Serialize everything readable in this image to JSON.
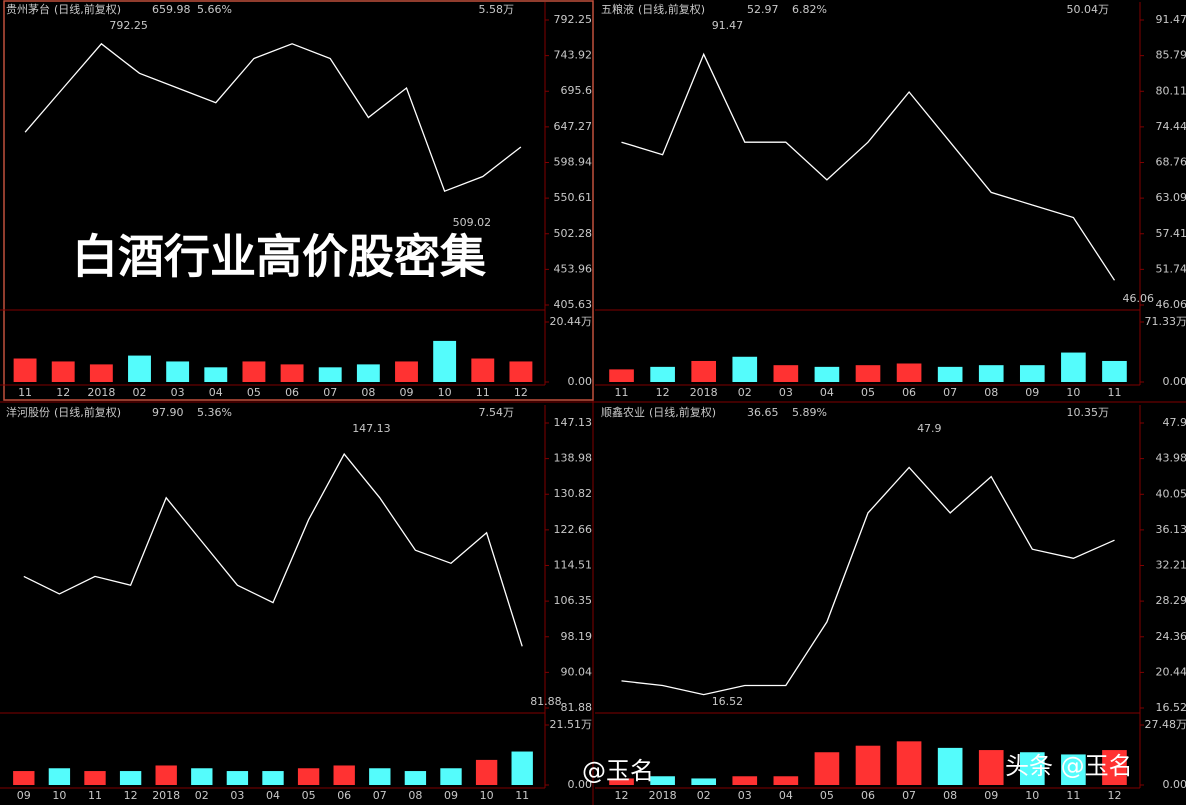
{
  "chart_data": [
    {
      "type": "line",
      "title": "贵州茅台",
      "subtitle": "(日线,前复权)",
      "price": "659.98",
      "change": "5.66%",
      "volume_label": "5.58万",
      "color": "#ffffff",
      "categories": [
        "11",
        "12",
        "2018",
        "02",
        "03",
        "04",
        "05",
        "06",
        "07",
        "08",
        "09",
        "10",
        "11",
        "12"
      ],
      "values": [
        640,
        700,
        760,
        720,
        700,
        680,
        740,
        760,
        740,
        660,
        700,
        560,
        580,
        620
      ],
      "ylim": [
        405.63,
        792.25
      ],
      "yticks": [
        405.63,
        453.96,
        502.28,
        550.61,
        598.94,
        647.27,
        695.6,
        743.92,
        792.25
      ],
      "high": 792.25,
      "low": 509.02,
      "grid": false,
      "volume": {
        "values": [
          8,
          7,
          6,
          9,
          7,
          5,
          7,
          6,
          5,
          6,
          7,
          14,
          8,
          7
        ],
        "ylim": [
          0,
          20.44
        ],
        "yticks": [
          {
            "value": 0,
            "label": "0.00"
          },
          {
            "value": 20.44,
            "label": "20.44万"
          }
        ]
      }
    },
    {
      "type": "line",
      "title": "五粮液",
      "subtitle": "(日线,前复权)",
      "price": "52.97",
      "change": "6.82%",
      "volume_label": "50.04万",
      "color": "#ffffff",
      "categories": [
        "11",
        "12",
        "2018",
        "02",
        "03",
        "04",
        "05",
        "06",
        "07",
        "08",
        "09",
        "10",
        "11"
      ],
      "values": [
        72,
        70,
        86,
        72,
        72,
        66,
        72,
        80,
        72,
        64,
        62,
        60,
        50
      ],
      "ylim": [
        46.06,
        91.47
      ],
      "yticks": [
        46.06,
        51.74,
        57.41,
        63.09,
        68.76,
        74.44,
        80.11,
        85.79,
        91.47
      ],
      "high": 91.47,
      "low": 46.06,
      "grid": false,
      "volume": {
        "values": [
          15,
          18,
          25,
          30,
          20,
          18,
          20,
          22,
          18,
          20,
          20,
          35,
          25
        ],
        "ylim": [
          0,
          71.33
        ],
        "yticks": [
          {
            "value": 0,
            "label": "0.00"
          },
          {
            "value": 71.33,
            "label": "71.33万"
          }
        ]
      }
    },
    {
      "type": "line",
      "title": "洋河股份",
      "subtitle": "(日线,前复权)",
      "price": "97.90",
      "change": "5.36%",
      "volume_label": "7.54万",
      "color": "#ffffff",
      "categories": [
        "09",
        "10",
        "11",
        "12",
        "2018",
        "02",
        "03",
        "04",
        "05",
        "06",
        "07",
        "08",
        "09",
        "10",
        "11"
      ],
      "values": [
        112,
        108,
        112,
        110,
        130,
        120,
        110,
        106,
        125,
        140,
        130,
        118,
        115,
        122,
        96
      ],
      "ylim": [
        81.88,
        147.13
      ],
      "yticks": [
        81.88,
        90.04,
        98.19,
        106.35,
        114.51,
        122.66,
        130.82,
        138.98,
        147.13
      ],
      "high": 147.13,
      "low": 81.88,
      "grid": false,
      "volume": {
        "values": [
          5,
          6,
          5,
          5,
          7,
          6,
          5,
          5,
          6,
          7,
          6,
          5,
          6,
          9,
          12
        ],
        "ylim": [
          0,
          21.51
        ],
        "yticks": [
          {
            "value": 0,
            "label": "0.00"
          },
          {
            "value": 21.51,
            "label": "21.51万"
          }
        ]
      }
    },
    {
      "type": "line",
      "title": "顺鑫农业",
      "subtitle": "(日线,前复权)",
      "price": "36.65",
      "change": "5.89%",
      "volume_label": "10.35万",
      "color": "#ffffff",
      "categories": [
        "12",
        "2018",
        "02",
        "03",
        "04",
        "05",
        "06",
        "07",
        "08",
        "09",
        "10",
        "11",
        "12"
      ],
      "values": [
        19.5,
        19,
        18,
        19,
        19,
        26,
        38,
        43,
        38,
        42,
        34,
        33,
        35
      ],
      "ylim": [
        16.52,
        47.9
      ],
      "yticks": [
        16.52,
        20.44,
        24.36,
        28.29,
        32.21,
        36.13,
        40.05,
        43.98,
        47.9
      ],
      "high": 47.9,
      "low": 16.52,
      "grid": false,
      "volume": {
        "values": [
          3,
          4,
          3,
          4,
          4,
          15,
          18,
          20,
          17,
          16,
          15,
          14,
          16
        ],
        "ylim": [
          0,
          27.48
        ],
        "yticks": [
          {
            "value": 0,
            "label": "0.00"
          },
          {
            "value": 27.48,
            "label": "27.48万"
          }
        ]
      }
    }
  ],
  "overlay": {
    "headline": "白酒行业高价股密集",
    "watermark": "@玉名",
    "source": "头条 @玉名"
  }
}
